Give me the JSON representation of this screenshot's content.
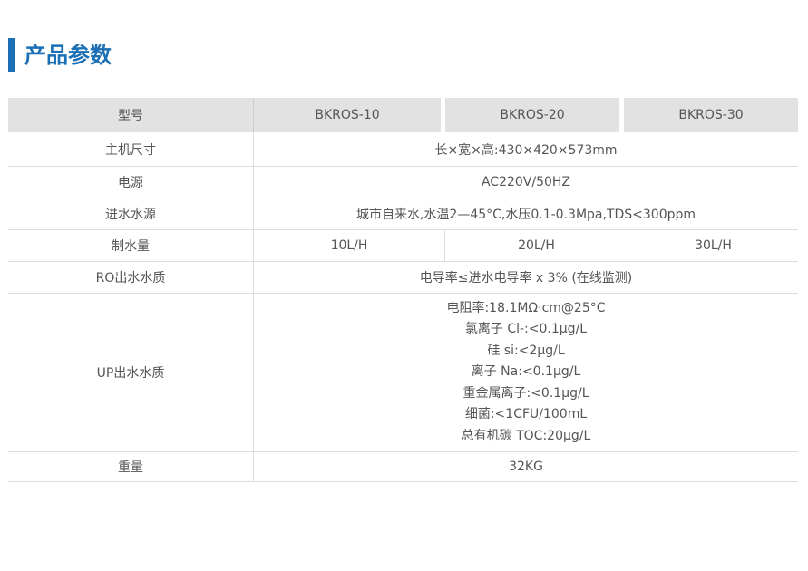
{
  "title": "产品参数",
  "header": {
    "label": "型号",
    "models": [
      "BKROS-10",
      "BKROS-20",
      "BKROS-30"
    ]
  },
  "rows": {
    "size": {
      "label": "主机尺寸",
      "value": "长×宽×高:430×420×573mm"
    },
    "power": {
      "label": "电源",
      "value": "AC220V/50HZ"
    },
    "inlet": {
      "label": "进水水源",
      "value": "城市自来水,水温2—45°C,水压0.1-0.3Mpa,TDS<300ppm"
    },
    "flow": {
      "label": "制水量",
      "values": [
        "10L/H",
        "20L/H",
        "30L/H"
      ]
    },
    "ro": {
      "label": "RO出水水质",
      "value": "电导率≤进水电导率 x 3% (在线监测)"
    },
    "up": {
      "label": "UP出水水质",
      "lines": [
        "电阻率:18.1MΩ·cm@25°C",
        "氯离子 Cl-:<0.1μg/L",
        "硅 si:<2μg/L",
        "离子 Na:<0.1μg/L",
        "重金属离子:<0.1μg/L",
        "细菌:<1CFU/100mL",
        "总有机碳 TOC:20μg/L"
      ]
    },
    "weight": {
      "label": "重量",
      "value": "32KG"
    }
  },
  "colors": {
    "accent": "#1a6fb5",
    "header_bg": "#e2e2e2"
  }
}
